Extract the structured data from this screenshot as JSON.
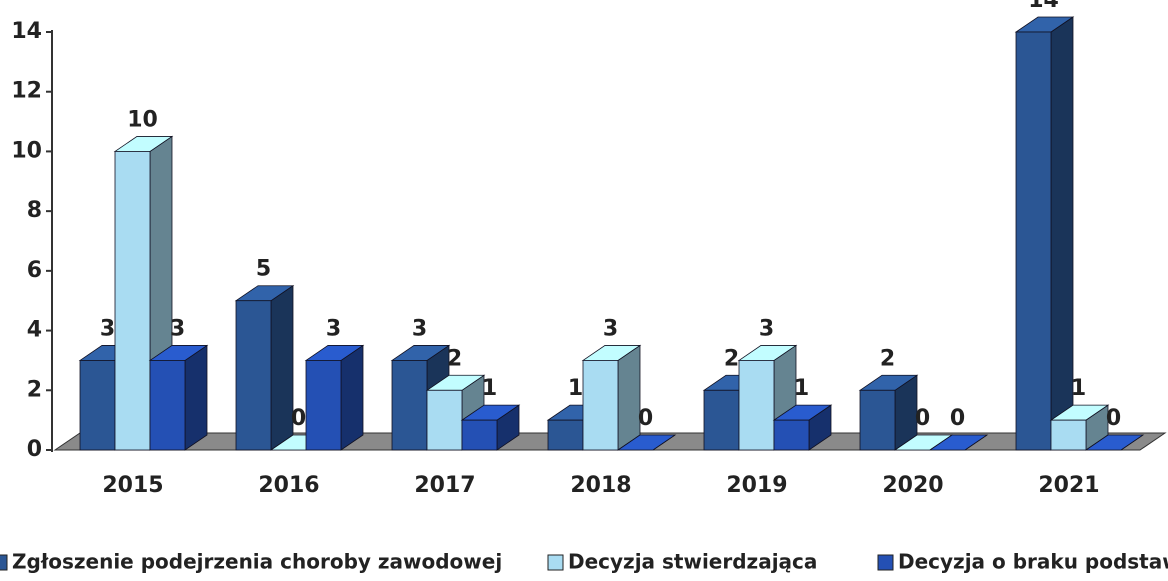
{
  "chart_data": {
    "type": "bar3d",
    "categories": [
      "2015",
      "2016",
      "2017",
      "2018",
      "2019",
      "2020",
      "2021"
    ],
    "series": [
      {
        "name": "Zgłoszenie podejrzenia choroby zawodowej",
        "color": "#2b5694",
        "values": [
          3,
          5,
          3,
          1,
          2,
          2,
          14
        ]
      },
      {
        "name": "Decyzja stwierdzająca",
        "color": "#a9dcf2",
        "values": [
          10,
          0,
          2,
          3,
          3,
          0,
          1
        ]
      },
      {
        "name": "Decyzja o braku podstaw",
        "color": "#2450b4",
        "values": [
          3,
          3,
          1,
          0,
          1,
          0,
          0
        ]
      }
    ],
    "ylim": [
      0,
      14
    ],
    "yticks": [
      0,
      2,
      4,
      6,
      8,
      10,
      12,
      14
    ]
  }
}
